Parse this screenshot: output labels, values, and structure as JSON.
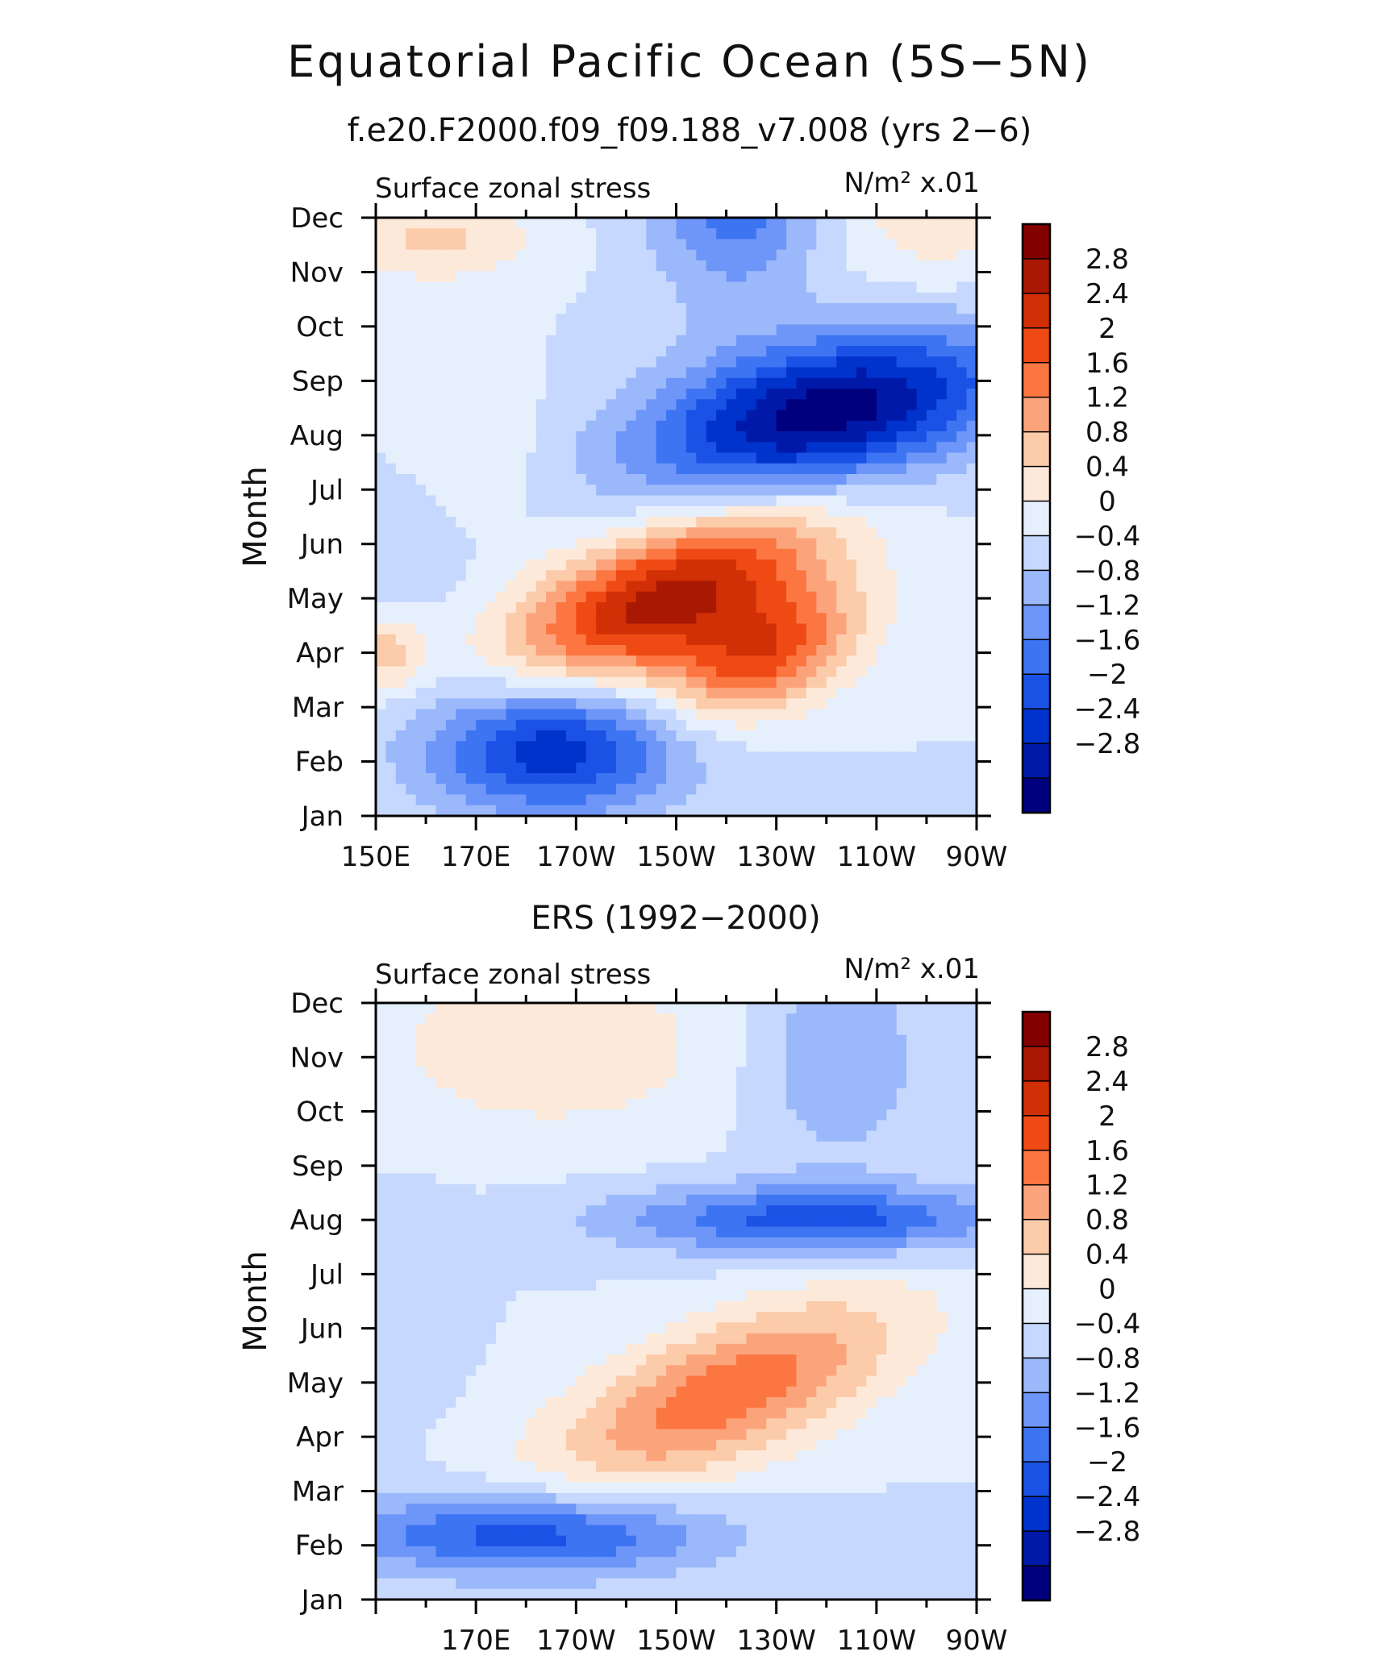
{
  "figure": {
    "title": "Equatorial Pacific Ocean (5S−5N)",
    "subtitle": "f.e20.F2000.f09_f09.188_v7.008 (yrs 2−6)"
  },
  "chart_data": [
    {
      "type": "contour",
      "panel_title": "",
      "left_label": "Surface zonal stress",
      "right_label": "N/m² x.01",
      "ylabel": "Month",
      "y_ticks": [
        "Jan",
        "Feb",
        "Mar",
        "Apr",
        "May",
        "Jun",
        "Jul",
        "Aug",
        "Sep",
        "Oct",
        "Nov",
        "Dec"
      ],
      "x_ticks": [
        "150E",
        "170E",
        "170W",
        "150W",
        "130W",
        "110W",
        "90W"
      ],
      "xlim_deg_east": [
        150,
        270
      ],
      "levels": [
        -2.8,
        -2.4,
        -2,
        -1.6,
        -1.2,
        -0.8,
        -0.4,
        0,
        0.4,
        0.8,
        1.2,
        1.6,
        2,
        2.4,
        2.8
      ],
      "colorbar_labels": [
        "2.8",
        "2.4",
        "2",
        "1.6",
        "1.2",
        "0.8",
        "0.4",
        "0",
        "−0.4",
        "−0.8",
        "−1.2",
        "−1.6",
        "−2",
        "−2.4",
        "−2.8"
      ],
      "colors": [
        "#00007f",
        "#0019a8",
        "#0033cc",
        "#1a52e6",
        "#3d74f2",
        "#6e96f8",
        "#9bb8fb",
        "#c6d8fd",
        "#e6f0fd",
        "#fde9d9",
        "#fccbaa",
        "#fba47c",
        "#fc7642",
        "#f04a14",
        "#d12f05",
        "#a81802",
        "#830000"
      ],
      "features": [
        {
          "lon": 208,
          "month": 4.0,
          "value": 3.0,
          "sx": 24,
          "sy": 0.9,
          "rot": 0.36
        },
        {
          "lon": 228,
          "month": 2.9,
          "value": 2.0,
          "sx": 14,
          "sy": 0.7,
          "rot": 0.36
        },
        {
          "lon": 240,
          "month": 7.4,
          "value": -3.1,
          "sx": 26,
          "sy": 0.95,
          "rot": 0.2
        },
        {
          "lon": 222,
          "month": 11.5,
          "value": -1.5,
          "sx": 12,
          "sy": 1.4,
          "rot": 0
        },
        {
          "lon": 185,
          "month": 1.3,
          "value": -2.4,
          "sx": 18,
          "sy": 0.9,
          "rot": 0
        },
        {
          "lon": 162,
          "month": 10.6,
          "value": 0.9,
          "sx": 14,
          "sy": 0.55,
          "rot": 0
        },
        {
          "lon": 152,
          "month": 3.0,
          "value": 1.1,
          "sx": 6,
          "sy": 0.5,
          "rot": 0
        },
        {
          "lon": 262,
          "month": 11.3,
          "value": 0.7,
          "sx": 15,
          "sy": 1.2,
          "rot": 0
        },
        {
          "lon": 168,
          "month": 6.8,
          "value": 0.5,
          "sx": 10,
          "sy": 1.0,
          "rot": 0
        },
        {
          "lon": 158,
          "month": 5.0,
          "value": -0.3,
          "sx": 8,
          "sy": 1.5,
          "rot": 0
        }
      ]
    },
    {
      "type": "contour",
      "panel_title": "ERS (1992−2000)",
      "left_label": "Surface zonal stress",
      "right_label": "N/m² x.01",
      "ylabel": "Month",
      "y_ticks": [
        "Jan",
        "Feb",
        "Mar",
        "Apr",
        "May",
        "Jun",
        "Jul",
        "Aug",
        "Sep",
        "Oct",
        "Nov",
        "Dec"
      ],
      "x_ticks": [
        "",
        "170E",
        "170W",
        "150W",
        "130W",
        "110W",
        "90W"
      ],
      "xlim_deg_east": [
        150,
        270
      ],
      "levels": [
        -2.8,
        -2.4,
        -2,
        -1.6,
        -1.2,
        -0.8,
        -0.4,
        0,
        0.4,
        0.8,
        1.2,
        1.6,
        2,
        2.4,
        2.8
      ],
      "colorbar_labels": [
        "2.8",
        "2.4",
        "2",
        "1.6",
        "1.2",
        "0.8",
        "0.4",
        "0",
        "−0.4",
        "−0.8",
        "−1.2",
        "−1.6",
        "−2",
        "−2.4",
        "−2.8"
      ],
      "colors": [
        "#00007f",
        "#0019a8",
        "#0033cc",
        "#1a52e6",
        "#3d74f2",
        "#6e96f8",
        "#9bb8fb",
        "#c6d8fd",
        "#e6f0fd",
        "#fde9d9",
        "#fccbaa",
        "#fba47c",
        "#fc7642",
        "#f04a14",
        "#d12f05",
        "#a81802",
        "#830000"
      ],
      "features": [
        {
          "lon": 220,
          "month": 3.8,
          "value": 1.9,
          "sx": 26,
          "sy": 0.9,
          "rot": 0.36
        },
        {
          "lon": 238,
          "month": 7.0,
          "value": -1.8,
          "sx": 28,
          "sy": 0.45,
          "rot": 0
        },
        {
          "lon": 180,
          "month": 1.2,
          "value": -1.9,
          "sx": 26,
          "sy": 0.55,
          "rot": 0
        },
        {
          "lon": 210,
          "month": 11.8,
          "value": -1.6,
          "sx": 12,
          "sy": 0.3,
          "rot": 0
        },
        {
          "lon": 242,
          "month": 10.0,
          "value": -0.8,
          "sx": 12,
          "sy": 1.4,
          "rot": 0
        },
        {
          "lon": 185,
          "month": 10.2,
          "value": 0.7,
          "sx": 26,
          "sy": 1.2,
          "rot": 0
        },
        {
          "lon": 157,
          "month": 5.5,
          "value": -0.4,
          "sx": 6,
          "sy": 1.2,
          "rot": 0
        }
      ]
    }
  ]
}
